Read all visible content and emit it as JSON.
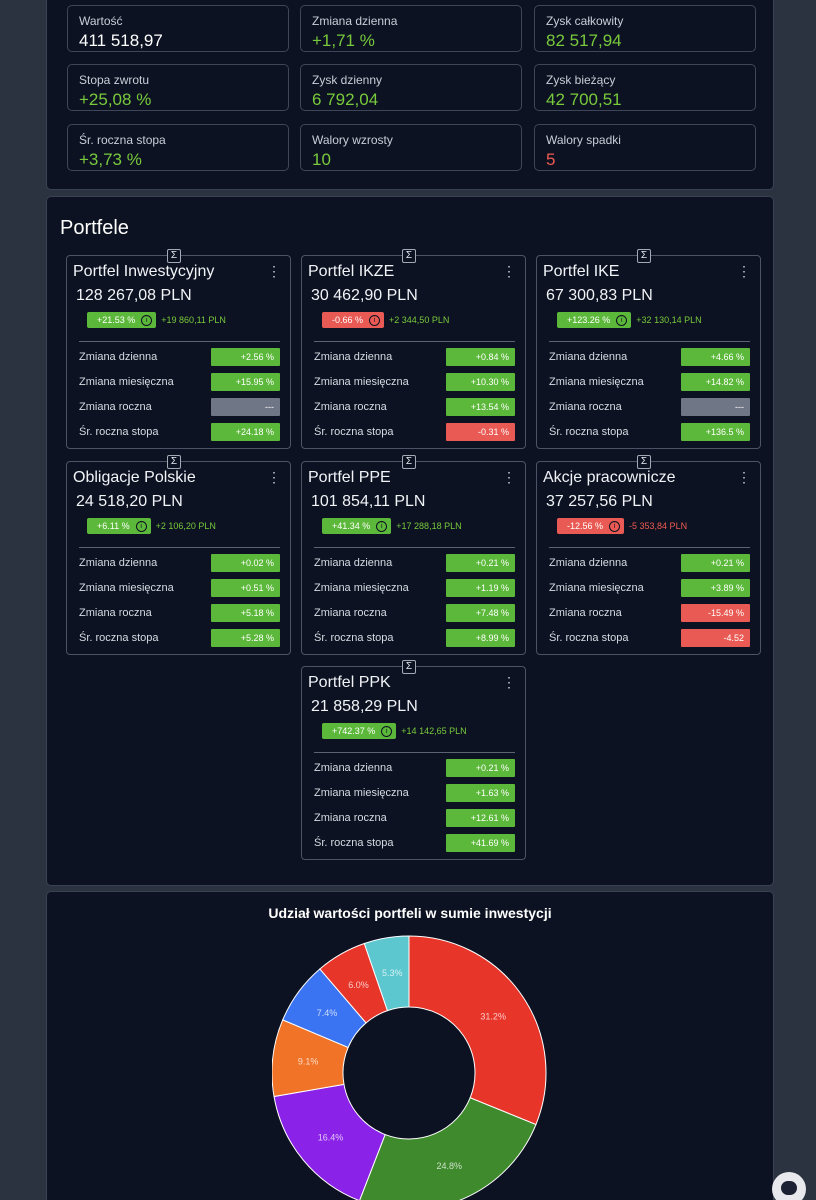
{
  "stats": [
    {
      "label": "Wartość",
      "value": "411 518,97",
      "color": "white"
    },
    {
      "label": "Zmiana dzienna",
      "value": "+1,71 %",
      "color": "green"
    },
    {
      "label": "Zysk całkowity",
      "value": "82 517,94",
      "color": "green"
    },
    {
      "label": "Stopa zwrotu",
      "value": "+25,08 %",
      "color": "green"
    },
    {
      "label": "Zysk dzienny",
      "value": "6 792,04",
      "color": "green"
    },
    {
      "label": "Zysk bieżący",
      "value": "42 700,51",
      "color": "green"
    },
    {
      "label": "Śr. roczna stopa",
      "value": "+3,73 %",
      "color": "green"
    },
    {
      "label": "Walory wzrosty",
      "value": "10",
      "color": "green"
    },
    {
      "label": "Walory spadki",
      "value": "5",
      "color": "red"
    }
  ],
  "portfolios_section": {
    "title": "Portfele",
    "sigma_icon": "Σ",
    "menu_icon": "⋮",
    "info_icon": "i",
    "row_labels": [
      "Zmiana dzienna",
      "Zmiana miesięczna",
      "Zmiana roczna",
      "Śr. roczna stopa"
    ],
    "cards": [
      {
        "name": "Portfel Inwestycyjny",
        "amount": "128 267,08 PLN",
        "pct": "+21.53 %",
        "pct_color": "green",
        "abs": "+19 860,11 PLN",
        "abs_color": "green",
        "rows": [
          {
            "value": "+2.56 %",
            "color": "green"
          },
          {
            "value": "+15.95 %",
            "color": "green"
          },
          {
            "value": "---",
            "color": "gray"
          },
          {
            "value": "+24.18 %",
            "color": "green"
          }
        ]
      },
      {
        "name": "Portfel IKZE",
        "amount": "30 462,90 PLN",
        "pct": "-0.66 %",
        "pct_color": "red",
        "abs": "+2 344,50 PLN",
        "abs_color": "green",
        "rows": [
          {
            "value": "+0.84 %",
            "color": "green"
          },
          {
            "value": "+10.30 %",
            "color": "green"
          },
          {
            "value": "+13.54 %",
            "color": "green"
          },
          {
            "value": "-0.31 %",
            "color": "red"
          }
        ]
      },
      {
        "name": "Portfel IKE",
        "amount": "67 300,83 PLN",
        "pct": "+123.26 %",
        "pct_color": "green",
        "abs": "+32 130,14 PLN",
        "abs_color": "green",
        "rows": [
          {
            "value": "+4.66 %",
            "color": "green"
          },
          {
            "value": "+14.82 %",
            "color": "green"
          },
          {
            "value": "---",
            "color": "gray"
          },
          {
            "value": "+136.5 %",
            "color": "green"
          }
        ]
      },
      {
        "name": "Obligacje Polskie",
        "amount": "24 518,20 PLN",
        "pct": "+6.11 %",
        "pct_color": "green",
        "abs": "+2 106,20 PLN",
        "abs_color": "green",
        "rows": [
          {
            "value": "+0.02 %",
            "color": "green"
          },
          {
            "value": "+0.51 %",
            "color": "green"
          },
          {
            "value": "+5.18 %",
            "color": "green"
          },
          {
            "value": "+5.28 %",
            "color": "green"
          }
        ]
      },
      {
        "name": "Portfel PPE",
        "amount": "101 854,11 PLN",
        "pct": "+41.34 %",
        "pct_color": "green",
        "abs": "+17 288,18 PLN",
        "abs_color": "green",
        "rows": [
          {
            "value": "+0.21 %",
            "color": "green"
          },
          {
            "value": "+1.19 %",
            "color": "green"
          },
          {
            "value": "+7.48 %",
            "color": "green"
          },
          {
            "value": "+8.99 %",
            "color": "green"
          }
        ]
      },
      {
        "name": "Akcje pracownicze",
        "amount": "37 257,56 PLN",
        "pct": "-12.56 %",
        "pct_color": "red",
        "abs": "-5 353,84 PLN",
        "abs_color": "red",
        "rows": [
          {
            "value": "+0.21 %",
            "color": "green"
          },
          {
            "value": "+3.89 %",
            "color": "green"
          },
          {
            "value": "-15.49 %",
            "color": "red"
          },
          {
            "value": "-4.52",
            "color": "red"
          }
        ]
      },
      {
        "name": "Portfel PPK",
        "amount": "21 858,29 PLN",
        "pct": "+742.37 %",
        "pct_color": "green",
        "abs": "+14 142,65 PLN",
        "abs_color": "green",
        "rows": [
          {
            "value": "+0.21 %",
            "color": "green"
          },
          {
            "value": "+1.63 %",
            "color": "green"
          },
          {
            "value": "+12.61 %",
            "color": "green"
          },
          {
            "value": "+41.69 %",
            "color": "green"
          }
        ]
      }
    ]
  },
  "chart_data": {
    "type": "pie",
    "title": "Udział wartości portfeli w sumie inwestycji",
    "slices": [
      {
        "label": "31.2%",
        "value": 31.2,
        "color": "#e8352a"
      },
      {
        "label": "24.8%",
        "value": 24.8,
        "color": "#3e8a2c"
      },
      {
        "label": "16.4%",
        "value": 16.4,
        "color": "#8b22e8"
      },
      {
        "label": "9.1%",
        "value": 9.1,
        "color": "#f07328"
      },
      {
        "label": "7.4%",
        "value": 7.4,
        "color": "#3a74f2"
      },
      {
        "label": "6.0%",
        "value": 6.0,
        "color": "#e8352a"
      },
      {
        "label": "5.3%",
        "value": 5.3,
        "color": "#5cc7cf"
      }
    ],
    "donut": true
  },
  "chat_button_icon": "chat-bubble-icon"
}
